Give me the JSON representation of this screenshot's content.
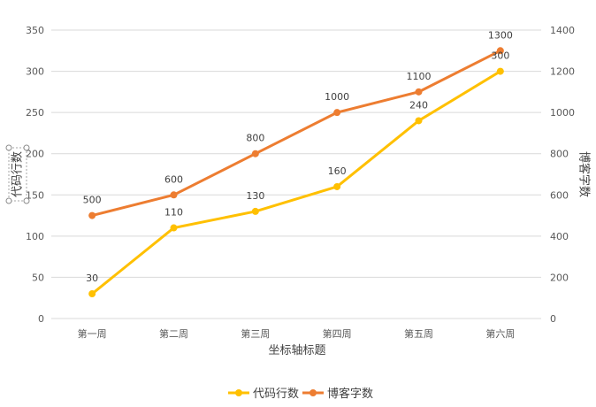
{
  "chart_data": {
    "type": "line",
    "categories": [
      "第一周",
      "第二周",
      "第三周",
      "第四周",
      "第五周",
      "第六周"
    ],
    "xlabel": "坐标轴标题",
    "ylabel": "代码行数",
    "y2label": "博客字数",
    "ylim": [
      0,
      350
    ],
    "y2lim": [
      0,
      1400
    ],
    "yticks": [
      0,
      50,
      100,
      150,
      200,
      250,
      300,
      350
    ],
    "y2ticks": [
      0,
      200,
      400,
      600,
      800,
      1000,
      1200,
      1400
    ],
    "grid": true,
    "legend": "bottom",
    "series": [
      {
        "name": "代码行数",
        "axis": "left",
        "color": "#FFC000",
        "values": [
          30,
          110,
          130,
          160,
          240,
          300
        ]
      },
      {
        "name": "博客字数",
        "axis": "right",
        "color": "#ED7D31",
        "values": [
          500,
          600,
          800,
          1000,
          1100,
          1300
        ]
      }
    ]
  }
}
